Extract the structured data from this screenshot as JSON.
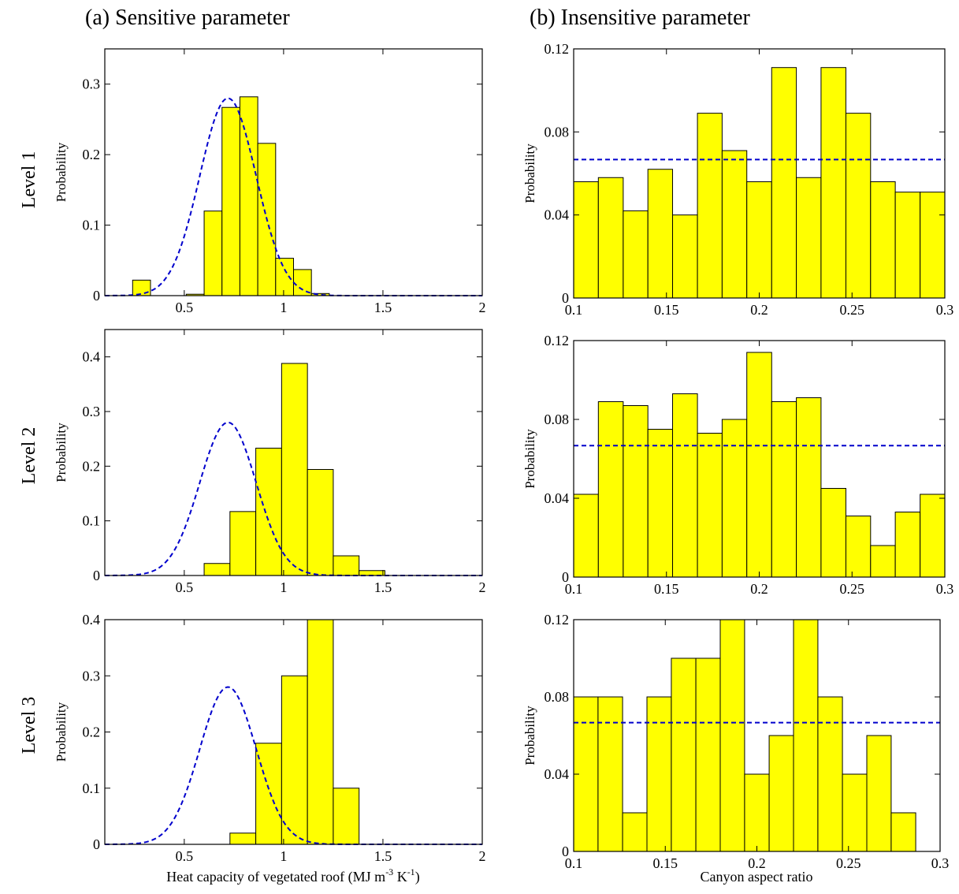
{
  "column_titles": {
    "left": "(a) Sensitive parameter",
    "right": "(b) Insensitive parameter"
  },
  "row_labels": [
    "Level 1",
    "Level 2",
    "Level 3"
  ],
  "x_labels": {
    "left": "Heat capacity of vegetated roof (MJ m",
    "left_sup1": "-3",
    "left_mid": " K",
    "left_sup2": "-1",
    "left_end": ")",
    "right": "Canyon aspect ratio"
  },
  "colors": {
    "bar": "#ffff00",
    "prior": "#0000cc"
  },
  "chart_data": [
    {
      "type": "bar",
      "column": "left",
      "row": 1,
      "ylabel": "Probability",
      "xlim": [
        0.1,
        2.0
      ],
      "ylim": [
        0,
        0.35
      ],
      "xticks": [
        0.5,
        1,
        1.5,
        2
      ],
      "xticklabels": [
        "0.5",
        "1",
        "1.5",
        "2"
      ],
      "yticks": [
        0,
        0.1,
        0.2,
        0.3
      ],
      "yticklabels": [
        "0",
        "0.1",
        "0.2",
        "0.3"
      ],
      "bin_edges": [
        0.24,
        0.33,
        0.42,
        0.51,
        0.6,
        0.69,
        0.78,
        0.87,
        0.96,
        1.05,
        1.14,
        1.23,
        1.32,
        1.41,
        1.5
      ],
      "values": [
        0.022,
        0,
        0,
        0.002,
        0.12,
        0.267,
        0.282,
        0.216,
        0.053,
        0.037,
        0.003,
        0,
        0,
        0
      ],
      "prior": {
        "type": "normal",
        "mean": 0.72,
        "sd": 0.142,
        "peak": 0.28
      }
    },
    {
      "type": "bar",
      "column": "left",
      "row": 2,
      "ylabel": "Probability",
      "xlim": [
        0.1,
        2.0
      ],
      "ylim": [
        0,
        0.45
      ],
      "xticks": [
        0.5,
        1,
        1.5,
        2
      ],
      "xticklabels": [
        "0.5",
        "1",
        "1.5",
        "2"
      ],
      "yticks": [
        0,
        0.1,
        0.2,
        0.3,
        0.4
      ],
      "yticklabels": [
        "0",
        "0.1",
        "0.2",
        "0.3",
        "0.4"
      ],
      "bin_edges": [
        0.6,
        0.73,
        0.86,
        0.99,
        1.12,
        1.25,
        1.38,
        1.51
      ],
      "values": [
        0.022,
        0.117,
        0.233,
        0.388,
        0.194,
        0.036,
        0.009
      ],
      "prior": {
        "type": "normal",
        "mean": 0.72,
        "sd": 0.142,
        "peak": 0.28
      }
    },
    {
      "type": "bar",
      "column": "left",
      "row": 3,
      "ylabel": "Probability",
      "xlim": [
        0.1,
        2.0
      ],
      "ylim": [
        0,
        0.4
      ],
      "xticks": [
        0.5,
        1,
        1.5,
        2
      ],
      "xticklabels": [
        "0.5",
        "1",
        "1.5",
        "2"
      ],
      "yticks": [
        0,
        0.1,
        0.2,
        0.3,
        0.4
      ],
      "yticklabels": [
        "0",
        "0.1",
        "0.2",
        "0.3",
        "0.4"
      ],
      "bin_edges": [
        0.73,
        0.86,
        0.99,
        1.12,
        1.25,
        1.38
      ],
      "values": [
        0.02,
        0.18,
        0.3,
        0.4,
        0.1
      ],
      "prior": {
        "type": "normal",
        "mean": 0.72,
        "sd": 0.142,
        "peak": 0.28
      }
    },
    {
      "type": "bar",
      "column": "right",
      "row": 1,
      "ylabel": "Probability",
      "xlim": [
        0.1,
        0.3
      ],
      "ylim": [
        0,
        0.12
      ],
      "xticks": [
        0.1,
        0.15,
        0.2,
        0.25,
        0.3
      ],
      "xticklabels": [
        "0.1",
        "0.15",
        "0.2",
        "0.25",
        "0.3"
      ],
      "yticks": [
        0,
        0.04,
        0.08,
        0.12
      ],
      "yticklabels": [
        "0",
        "0.04",
        "0.08",
        "0.12"
      ],
      "bin_edges": [
        0.1,
        0.1133,
        0.1267,
        0.14,
        0.1533,
        0.1667,
        0.18,
        0.1933,
        0.2067,
        0.22,
        0.2333,
        0.2467,
        0.26,
        0.2733,
        0.2867,
        0.3
      ],
      "values": [
        0.056,
        0.058,
        0.042,
        0.062,
        0.04,
        0.089,
        0.071,
        0.056,
        0.111,
        0.058,
        0.111,
        0.089,
        0.056,
        0.051,
        0.051
      ],
      "prior": {
        "type": "uniform",
        "value": 0.0667
      }
    },
    {
      "type": "bar",
      "column": "right",
      "row": 2,
      "ylabel": "Probability",
      "xlim": [
        0.1,
        0.3
      ],
      "ylim": [
        0,
        0.12
      ],
      "xticks": [
        0.1,
        0.15,
        0.2,
        0.25,
        0.3
      ],
      "xticklabels": [
        "0.1",
        "0.15",
        "0.2",
        "0.25",
        "0.3"
      ],
      "yticks": [
        0,
        0.04,
        0.08,
        0.12
      ],
      "yticklabels": [
        "0",
        "0.04",
        "0.08",
        "0.12"
      ],
      "bin_edges": [
        0.1,
        0.1133,
        0.1267,
        0.14,
        0.1533,
        0.1667,
        0.18,
        0.1933,
        0.2067,
        0.22,
        0.2333,
        0.2467,
        0.26,
        0.2733,
        0.2867,
        0.3
      ],
      "values": [
        0.042,
        0.089,
        0.087,
        0.075,
        0.093,
        0.073,
        0.08,
        0.114,
        0.089,
        0.091,
        0.045,
        0.031,
        0.016,
        0.033,
        0.042
      ],
      "prior": {
        "type": "uniform",
        "value": 0.0667
      }
    },
    {
      "type": "bar",
      "column": "right",
      "row": 3,
      "ylabel": "Probability",
      "xlim": [
        0.1,
        0.3
      ],
      "ylim": [
        0,
        0.12
      ],
      "xticks": [
        0.1,
        0.15,
        0.2,
        0.25,
        0.3
      ],
      "xticklabels": [
        "0.1",
        "0.15",
        "0.2",
        "0.25",
        "0.3"
      ],
      "yticks": [
        0,
        0.04,
        0.08,
        0.12
      ],
      "yticklabels": [
        "0",
        "0.04",
        "0.08",
        "0.12"
      ],
      "bin_edges": [
        0.1,
        0.1133,
        0.1267,
        0.14,
        0.1533,
        0.1667,
        0.18,
        0.1933,
        0.2067,
        0.22,
        0.2333,
        0.2467,
        0.26,
        0.2733,
        0.2867
      ],
      "values": [
        0.08,
        0.08,
        0.02,
        0.08,
        0.1,
        0.1,
        0.12,
        0.04,
        0.06,
        0.12,
        0.08,
        0.04,
        0.06,
        0.02
      ],
      "prior": {
        "type": "uniform",
        "value": 0.0667
      }
    }
  ]
}
